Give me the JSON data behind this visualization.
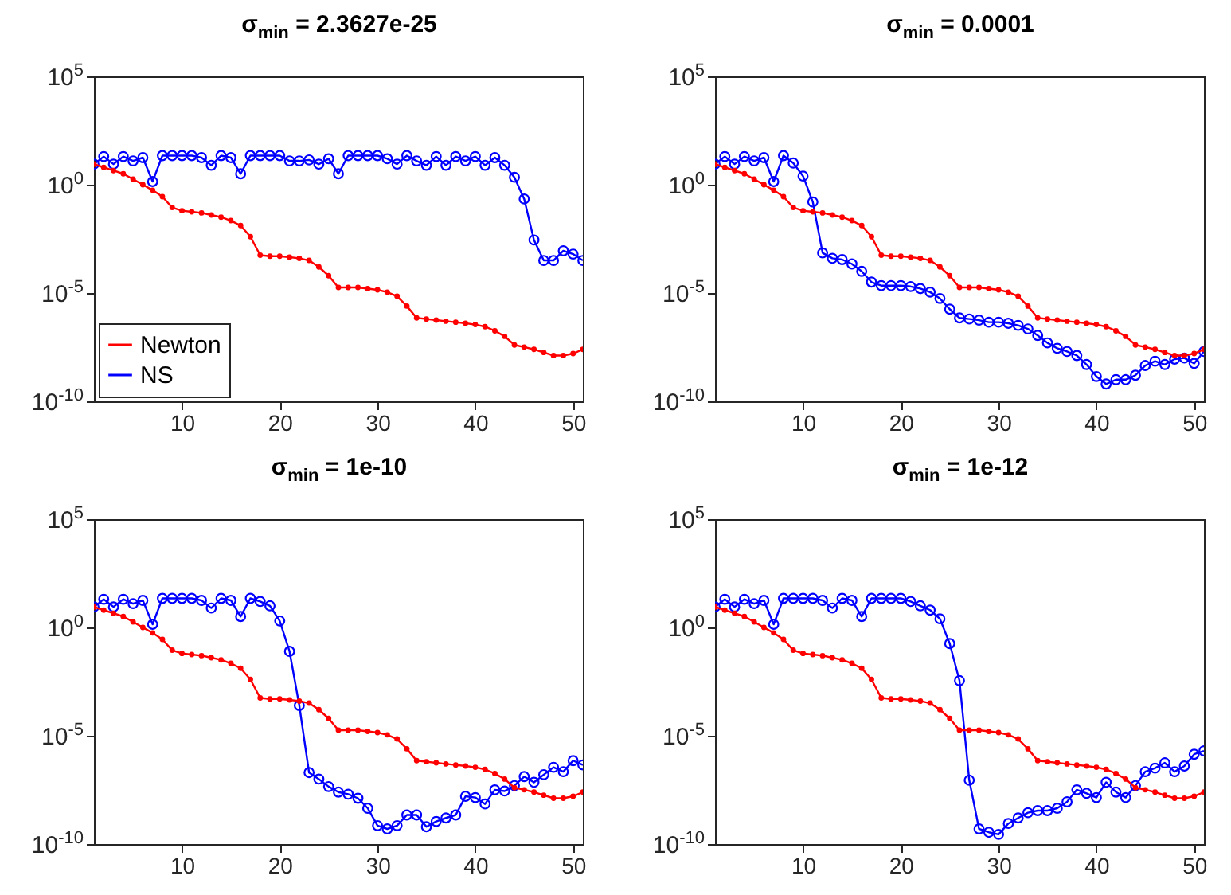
{
  "chart_data": [
    {
      "type": "line",
      "title": "σ$_{min}$ = 2.3627e-25",
      "x": [
        1,
        2,
        3,
        4,
        5,
        6,
        7,
        8,
        9,
        10,
        11,
        12,
        13,
        14,
        15,
        16,
        17,
        18,
        19,
        20,
        21,
        22,
        23,
        24,
        25,
        26,
        27,
        28,
        29,
        30,
        31,
        32,
        33,
        34,
        35,
        36,
        37,
        38,
        39,
        40,
        41,
        42,
        43,
        44,
        45,
        46,
        47,
        48,
        49,
        50,
        51
      ],
      "xlim": [
        1,
        51
      ],
      "xticks": [
        10,
        20,
        30,
        40,
        50
      ],
      "ylim": [
        1e-10,
        100000
      ],
      "yticks": [
        {
          "value": 100000,
          "label": "10$^{5}$"
        },
        {
          "value": 1,
          "label": "10$^{0}$"
        },
        {
          "value": 1e-05,
          "label": "10$^{-5}$"
        },
        {
          "value": 1e-10,
          "label": "10$^{-10}$"
        }
      ],
      "log": "y",
      "legend": "bottom left",
      "marker": "circle",
      "line_style": "solid",
      "series": [
        {
          "name": "Newton",
          "color": "#ff0000",
          "values": [
            8.9,
            6.3,
            4.5,
            3.2,
            1.8,
            1,
            0.56,
            0.28,
            0.089,
            0.063,
            0.056,
            0.05,
            0.04,
            0.032,
            0.022,
            0.013,
            0.004,
            0.00056,
            0.0005,
            0.0005,
            0.00045,
            0.0004,
            0.00032,
            0.00016,
            6.3e-05,
            1.8e-05,
            1.8e-05,
            1.8e-05,
            1.6e-05,
            1.4e-05,
            1.1e-05,
            7.1e-06,
            2.5e-06,
            7.1e-07,
            6.3e-07,
            5.6e-07,
            5e-07,
            4.5e-07,
            4e-07,
            3.5e-07,
            2.8e-07,
            1.8e-07,
            1e-07,
            4e-08,
            3.2e-08,
            2.5e-08,
            1.8e-08,
            1.3e-08,
            1.3e-08,
            1.6e-08,
            2.5e-08
          ]
        },
        {
          "name": "NS",
          "color": "#0000ff",
          "values": [
            8.9,
            20,
            8.9,
            20,
            12.6,
            17.8,
            1.4,
            22,
            22,
            22,
            22,
            17.8,
            7.9,
            22,
            17.8,
            3.2,
            22,
            22,
            22,
            22,
            12.6,
            12.6,
            14,
            8.9,
            15.8,
            3.2,
            22,
            22,
            22,
            22,
            15.8,
            8.9,
            22,
            12.6,
            7.9,
            20,
            7.9,
            20,
            12.6,
            20,
            7.9,
            17.8,
            7.9,
            2.2,
            0.22,
            0.0028,
            0.00032,
            0.00032,
            0.00089,
            0.00063,
            0.00032
          ]
        }
      ]
    },
    {
      "type": "line",
      "title": "σ$_{min}$ = 0.0001",
      "x": [
        1,
        2,
        3,
        4,
        5,
        6,
        7,
        8,
        9,
        10,
        11,
        12,
        13,
        14,
        15,
        16,
        17,
        18,
        19,
        20,
        21,
        22,
        23,
        24,
        25,
        26,
        27,
        28,
        29,
        30,
        31,
        32,
        33,
        34,
        35,
        36,
        37,
        38,
        39,
        40,
        41,
        42,
        43,
        44,
        45,
        46,
        47,
        48,
        49,
        50,
        51
      ],
      "xlim": [
        1,
        51
      ],
      "xticks": [
        10,
        20,
        30,
        40,
        50
      ],
      "ylim": [
        1e-10,
        100000
      ],
      "yticks": [
        {
          "value": 100000,
          "label": "10$^{5}$"
        },
        {
          "value": 1,
          "label": "10$^{0}$"
        },
        {
          "value": 1e-05,
          "label": "10$^{-5}$"
        },
        {
          "value": 1e-10,
          "label": "10$^{-10}$"
        }
      ],
      "log": "y",
      "marker": "circle",
      "line_style": "solid",
      "series": [
        {
          "color": "#ff0000",
          "values": [
            8.9,
            6.3,
            4.5,
            3.2,
            1.8,
            1,
            0.56,
            0.28,
            0.089,
            0.063,
            0.056,
            0.05,
            0.04,
            0.032,
            0.022,
            0.013,
            0.004,
            0.00056,
            0.0005,
            0.0005,
            0.00045,
            0.0004,
            0.00032,
            0.00016,
            6.3e-05,
            1.8e-05,
            1.8e-05,
            1.8e-05,
            1.6e-05,
            1.4e-05,
            1.1e-05,
            7.1e-06,
            2.5e-06,
            7.1e-07,
            6.3e-07,
            5.6e-07,
            5e-07,
            4.5e-07,
            4e-07,
            3.5e-07,
            2.8e-07,
            1.8e-07,
            1e-07,
            4e-08,
            3.2e-08,
            2.5e-08,
            1.8e-08,
            1.3e-08,
            1.3e-08,
            1.6e-08,
            2.5e-08
          ]
        },
        {
          "color": "#0000ff",
          "values": [
            8.9,
            20,
            8.9,
            20,
            12.6,
            17.8,
            1.4,
            22,
            10,
            2.5,
            0.16,
            0.00071,
            0.0004,
            0.00035,
            0.00022,
            0.0001,
            3.2e-05,
            2.2e-05,
            2.2e-05,
            2.2e-05,
            2e-05,
            1.6e-05,
            1.1e-05,
            5.6e-06,
            1.8e-06,
            7.1e-07,
            6.3e-07,
            5.6e-07,
            4.5e-07,
            4.5e-07,
            4e-07,
            3.2e-07,
            2.2e-07,
            1.1e-07,
            5e-08,
            2.8e-08,
            2e-08,
            1.3e-08,
            5e-09,
            1.4e-09,
            6.3e-10,
            1e-09,
            1e-09,
            1.6e-09,
            4.5e-09,
            7.1e-09,
            5e-09,
            8.9e-09,
            1e-08,
            5.6e-09,
            2e-08
          ]
        }
      ]
    },
    {
      "type": "line",
      "title": "σ$_{min}$ = 1e-10",
      "x": [
        1,
        2,
        3,
        4,
        5,
        6,
        7,
        8,
        9,
        10,
        11,
        12,
        13,
        14,
        15,
        16,
        17,
        18,
        19,
        20,
        21,
        22,
        23,
        24,
        25,
        26,
        27,
        28,
        29,
        30,
        31,
        32,
        33,
        34,
        35,
        36,
        37,
        38,
        39,
        40,
        41,
        42,
        43,
        44,
        45,
        46,
        47,
        48,
        49,
        50,
        51
      ],
      "xlim": [
        1,
        51
      ],
      "xticks": [
        10,
        20,
        30,
        40,
        50
      ],
      "ylim": [
        1e-10,
        100000
      ],
      "yticks": [
        {
          "value": 100000,
          "label": "10$^{5}$"
        },
        {
          "value": 1,
          "label": "10$^{0}$"
        },
        {
          "value": 1e-05,
          "label": "10$^{-5}$"
        },
        {
          "value": 1e-10,
          "label": "10$^{-10}$"
        }
      ],
      "log": "y",
      "marker": "circle",
      "line_style": "solid",
      "series": [
        {
          "color": "#ff0000",
          "values": [
            8.9,
            6.3,
            4.5,
            3.2,
            1.8,
            1,
            0.56,
            0.28,
            0.089,
            0.063,
            0.056,
            0.05,
            0.04,
            0.032,
            0.022,
            0.013,
            0.004,
            0.00056,
            0.0005,
            0.0005,
            0.00045,
            0.0004,
            0.00032,
            0.00016,
            6.3e-05,
            1.8e-05,
            1.8e-05,
            1.8e-05,
            1.6e-05,
            1.4e-05,
            1.1e-05,
            7.1e-06,
            2.5e-06,
            7.1e-07,
            6.3e-07,
            5.6e-07,
            5e-07,
            4.5e-07,
            4e-07,
            3.5e-07,
            2.8e-07,
            1.8e-07,
            1e-07,
            4e-08,
            3.2e-08,
            2.5e-08,
            1.8e-08,
            1.3e-08,
            1.3e-08,
            1.6e-08,
            2.5e-08
          ]
        },
        {
          "color": "#0000ff",
          "values": [
            8.9,
            20,
            8.9,
            20,
            12.6,
            17.8,
            1.4,
            22,
            22,
            22,
            22,
            17.8,
            7.9,
            22,
            17.8,
            3.2,
            22,
            15.8,
            10,
            2,
            0.079,
            0.00025,
            2e-07,
            1e-07,
            4.5e-08,
            2.5e-08,
            2e-08,
            1.3e-08,
            4.5e-09,
            7.1e-10,
            5e-10,
            7.1e-10,
            2.2e-09,
            2.2e-09,
            6.3e-10,
            1.1e-09,
            1.6e-09,
            2.2e-09,
            1.6e-08,
            1.4e-08,
            7.1e-09,
            3.2e-08,
            2.8e-08,
            5e-08,
            1.3e-07,
            7.1e-08,
            1.6e-07,
            3.5e-07,
            2.2e-07,
            7.1e-07,
            4.5e-07
          ]
        }
      ]
    },
    {
      "type": "line",
      "title": "σ$_{min}$ = 1e-12",
      "x": [
        1,
        2,
        3,
        4,
        5,
        6,
        7,
        8,
        9,
        10,
        11,
        12,
        13,
        14,
        15,
        16,
        17,
        18,
        19,
        20,
        21,
        22,
        23,
        24,
        25,
        26,
        27,
        28,
        29,
        30,
        31,
        32,
        33,
        34,
        35,
        36,
        37,
        38,
        39,
        40,
        41,
        42,
        43,
        44,
        45,
        46,
        47,
        48,
        49,
        50,
        51
      ],
      "xlim": [
        1,
        51
      ],
      "xticks": [
        10,
        20,
        30,
        40,
        50
      ],
      "ylim": [
        1e-10,
        100000
      ],
      "yticks": [
        {
          "value": 100000,
          "label": "10$^{5}$"
        },
        {
          "value": 1,
          "label": "10$^{0}$"
        },
        {
          "value": 1e-05,
          "label": "10$^{-5}$"
        },
        {
          "value": 1e-10,
          "label": "10$^{-10}$"
        }
      ],
      "log": "y",
      "marker": "circle",
      "line_style": "solid",
      "series": [
        {
          "color": "#ff0000",
          "values": [
            8.9,
            6.3,
            4.5,
            3.2,
            1.8,
            1,
            0.56,
            0.28,
            0.089,
            0.063,
            0.056,
            0.05,
            0.04,
            0.032,
            0.022,
            0.013,
            0.004,
            0.00056,
            0.0005,
            0.0005,
            0.00045,
            0.0004,
            0.00032,
            0.00016,
            6.3e-05,
            1.8e-05,
            1.8e-05,
            1.8e-05,
            1.6e-05,
            1.4e-05,
            1.1e-05,
            7.1e-06,
            2.5e-06,
            7.1e-07,
            6.3e-07,
            5.6e-07,
            5e-07,
            4.5e-07,
            4e-07,
            3.5e-07,
            2.8e-07,
            1.8e-07,
            1e-07,
            4e-08,
            3.2e-08,
            2.5e-08,
            1.8e-08,
            1.3e-08,
            1.3e-08,
            1.6e-08,
            2.5e-08
          ]
        },
        {
          "color": "#0000ff",
          "values": [
            8.9,
            20,
            8.9,
            20,
            12.6,
            17.8,
            1.4,
            22,
            22,
            22,
            22,
            17.8,
            7.9,
            22,
            17.8,
            3.2,
            22,
            22,
            22,
            22,
            15.8,
            10,
            6.3,
            2.5,
            0.18,
            0.0035,
            8.9e-08,
            5e-10,
            3.5e-10,
            2.8e-10,
            8.9e-10,
            1.6e-09,
            2.8e-09,
            3.5e-09,
            3.5e-09,
            4.5e-09,
            8.9e-09,
            3.2e-08,
            2.2e-08,
            1.4e-08,
            7.1e-08,
            2.5e-08,
            1.4e-08,
            5e-08,
            2.2e-07,
            3.2e-07,
            5.6e-07,
            2.2e-07,
            4e-07,
            1.4e-06,
            2e-06
          ]
        }
      ]
    }
  ]
}
